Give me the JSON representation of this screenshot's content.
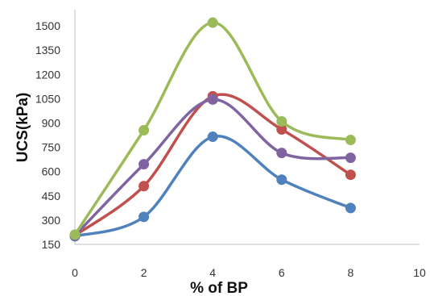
{
  "chart_data": {
    "type": "line",
    "title": "",
    "xlabel": "% of BP",
    "ylabel": "UCS(kPa)",
    "xlim": [
      0,
      10
    ],
    "ylim": [
      150,
      1600
    ],
    "xticks": [
      0,
      2,
      4,
      6,
      8,
      10
    ],
    "yticks": [
      150,
      300,
      450,
      600,
      750,
      900,
      1050,
      1200,
      1350,
      1500
    ],
    "x_tick_labels": [
      "0",
      "2",
      "4",
      "6",
      "8",
      "10"
    ],
    "y_tick_labels": [
      "150",
      "300",
      "450",
      "600",
      "750",
      "900",
      "1050",
      "1200",
      "1350",
      "1500"
    ],
    "grid": false,
    "smooth": true,
    "x": [
      0,
      2,
      4,
      6,
      8
    ],
    "series": [
      {
        "color": "#4f81bd",
        "values": [
          200,
          320,
          815,
          550,
          375
        ]
      },
      {
        "color": "#c0504d",
        "values": [
          205,
          510,
          1065,
          860,
          580
        ]
      },
      {
        "color": "#8064a2",
        "values": [
          205,
          645,
          1045,
          715,
          685
        ]
      },
      {
        "color": "#9bbb59",
        "values": [
          210,
          855,
          1520,
          910,
          795
        ]
      }
    ]
  }
}
